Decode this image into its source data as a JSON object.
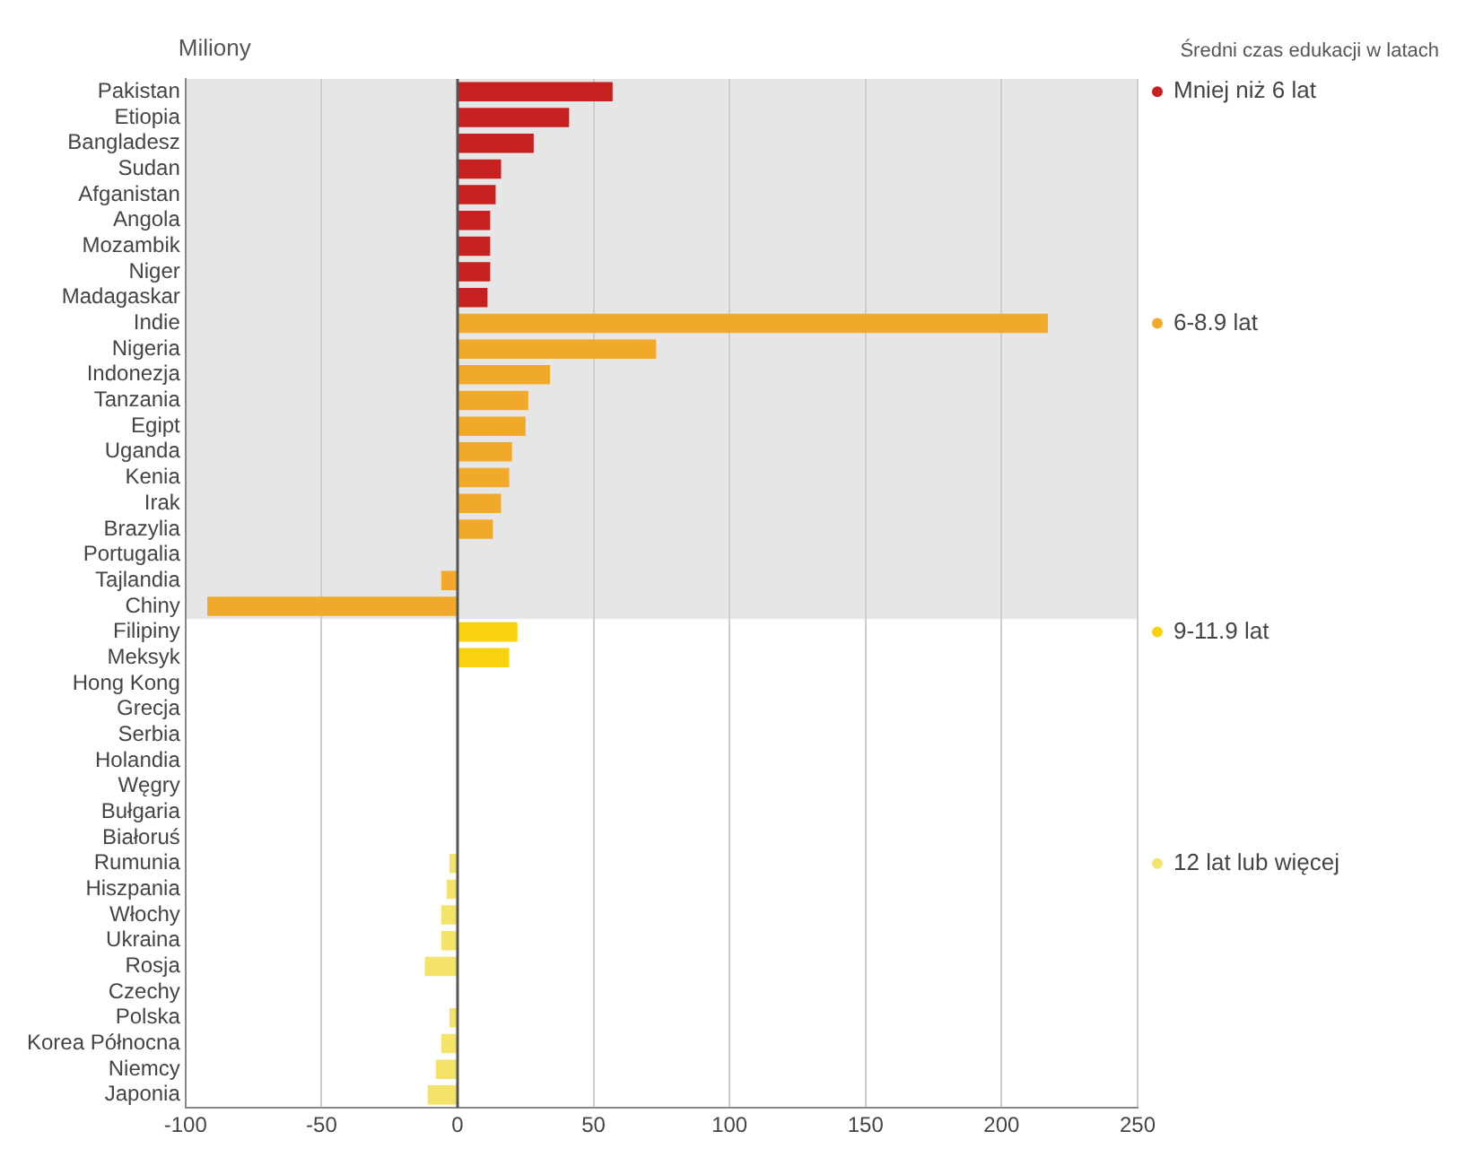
{
  "chart_data": {
    "type": "bar",
    "orientation": "horizontal",
    "xlabel": "Miliony",
    "legend_title": "Średni czas edukacji w latach",
    "categories": [
      "Pakistan",
      "Etiopia",
      "Bangladesz",
      "Sudan",
      "Afganistan",
      "Angola",
      "Mozambik",
      "Niger",
      "Madagaskar",
      "Indie",
      "Nigeria",
      "Indonezja",
      "Tanzania",
      "Egipt",
      "Uganda",
      "Kenia",
      "Irak",
      "Brazylia",
      "Portugalia",
      "Tajlandia",
      "Chiny",
      "Filipiny",
      "Meksyk",
      "Hong Kong",
      "Grecja",
      "Serbia",
      "Holandia",
      "Węgry",
      "Bułgaria",
      "Białoruś",
      "Rumunia",
      "Hiszpania",
      "Włochy",
      "Ukraina",
      "Rosja",
      "Czechy",
      "Polska",
      "Korea Północna",
      "Niemcy",
      "Japonia"
    ],
    "series": [
      {
        "name": "Mniej niż 6 lat",
        "color": "#c62020",
        "values": [
          57,
          41,
          28,
          16,
          14,
          12,
          12,
          12,
          11,
          null,
          null,
          null,
          null,
          null,
          null,
          null,
          null,
          null,
          null,
          null,
          null,
          null,
          null,
          null,
          null,
          null,
          null,
          null,
          null,
          null,
          null,
          null,
          null,
          null,
          null,
          null,
          null,
          null,
          null,
          null
        ]
      },
      {
        "name": "6-8.9 lat",
        "color": "#f0a92a",
        "values": [
          null,
          null,
          null,
          null,
          null,
          null,
          null,
          null,
          null,
          217,
          73,
          34,
          26,
          25,
          20,
          19,
          16,
          13,
          0,
          -6,
          -92,
          null,
          null,
          null,
          null,
          null,
          null,
          null,
          null,
          null,
          null,
          null,
          null,
          null,
          null,
          null,
          null,
          null,
          null,
          null
        ]
      },
      {
        "name": "9-11.9 lat",
        "color": "#f8d20c",
        "values": [
          null,
          null,
          null,
          null,
          null,
          null,
          null,
          null,
          null,
          null,
          null,
          null,
          null,
          null,
          null,
          null,
          null,
          null,
          null,
          null,
          null,
          22,
          19,
          0,
          0,
          0,
          0,
          0,
          0,
          0,
          null,
          null,
          null,
          null,
          null,
          null,
          null,
          null,
          null,
          null
        ]
      },
      {
        "name": "12 lat lub więcej",
        "color": "#f3e36a",
        "values": [
          null,
          null,
          null,
          null,
          null,
          null,
          null,
          null,
          null,
          null,
          null,
          null,
          null,
          null,
          null,
          null,
          null,
          null,
          null,
          null,
          null,
          null,
          null,
          null,
          null,
          null,
          null,
          null,
          null,
          null,
          -3,
          -4,
          -6,
          -6,
          -12,
          0,
          -3,
          -6,
          -8,
          -11
        ]
      }
    ],
    "xlim": [
      -100,
      250
    ],
    "xticks": [
      -100,
      -50,
      0,
      50,
      100,
      150,
      200,
      250
    ],
    "grid": "x",
    "legend": "right",
    "marker": "circle",
    "ref_lines": [
      {
        "axis": "x",
        "value": 0,
        "color": "#555555"
      }
    ],
    "bands": [
      {
        "axis": "y",
        "from": "Pakistan",
        "to": "Chiny",
        "color": "#e6e6e6"
      }
    ]
  }
}
